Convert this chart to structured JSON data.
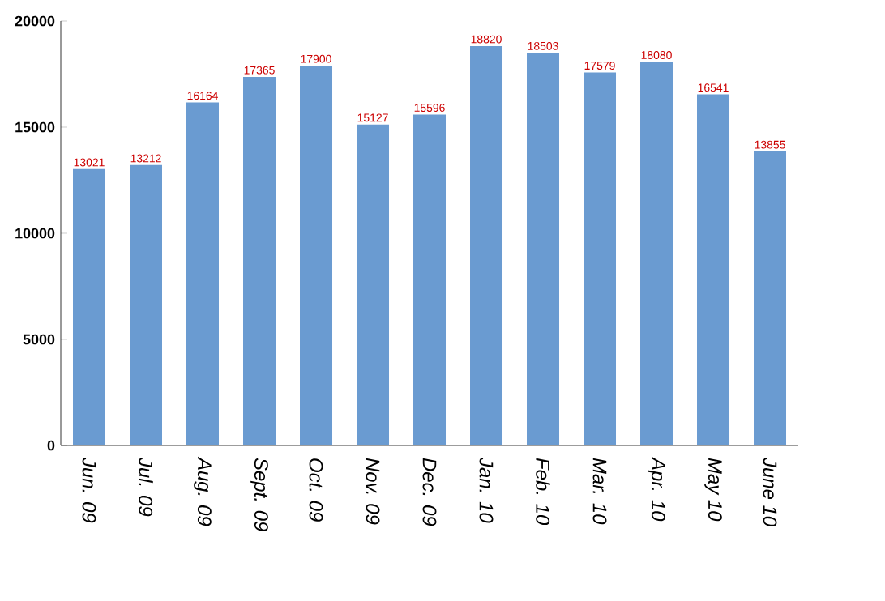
{
  "chart_data": {
    "type": "bar",
    "categories": [
      "Jun. 09",
      "Jul. 09",
      "Aug. 09",
      "Sept. 09",
      "Oct. 09",
      "Nov. 09",
      "Dec. 09",
      "Jan. 10",
      "Feb. 10",
      "Mar. 10",
      "Apr. 10",
      "May 10",
      "June 10"
    ],
    "values": [
      13021,
      13212,
      16164,
      17365,
      17900,
      15127,
      15596,
      18820,
      18503,
      17579,
      18080,
      16541,
      13855
    ],
    "color": "#6a9bd1",
    "ylim": [
      0,
      20000
    ],
    "yticks": [
      0,
      5000,
      10000,
      15000,
      20000
    ],
    "data_labels": true,
    "grid": false
  }
}
